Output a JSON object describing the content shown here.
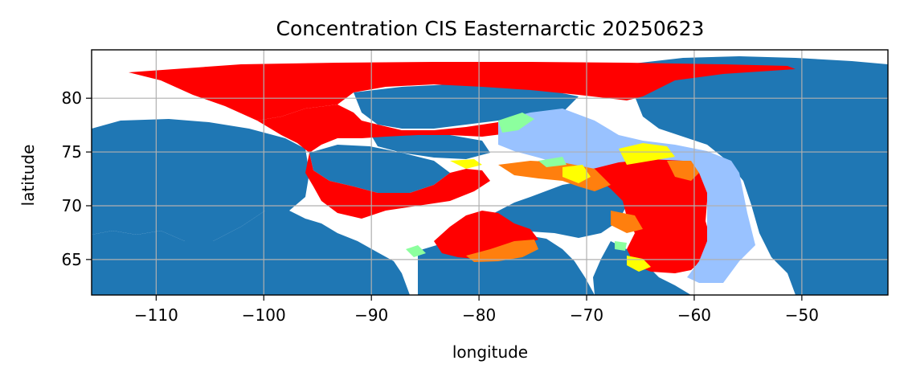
{
  "chart_data": {
    "type": "map",
    "title": "Concentration CIS Easternarctic 20250623",
    "xlabel": "longitude",
    "ylabel": "latitude",
    "xlim": [
      -116,
      -42
    ],
    "ylim": [
      61.7,
      84.5
    ],
    "grid": true,
    "xticks": [
      -110,
      -100,
      -90,
      -80,
      -70,
      -60,
      -50
    ],
    "yticks": [
      65,
      70,
      75,
      80
    ],
    "xtick_labels": [
      "−110",
      "−100",
      "−90",
      "−80",
      "−70",
      "−60",
      "−50"
    ],
    "ytick_labels": [
      "65",
      "70",
      "75",
      "80"
    ],
    "colors": {
      "land": "#1f77b4",
      "open_water": "#ffffff",
      "very_open_ice": "#99c2ff",
      "open_ice": "#8cff9e",
      "medium_ice": "#ffff00",
      "close_ice": "#ff7f0e",
      "very_close_ice": "#ff0000"
    }
  }
}
